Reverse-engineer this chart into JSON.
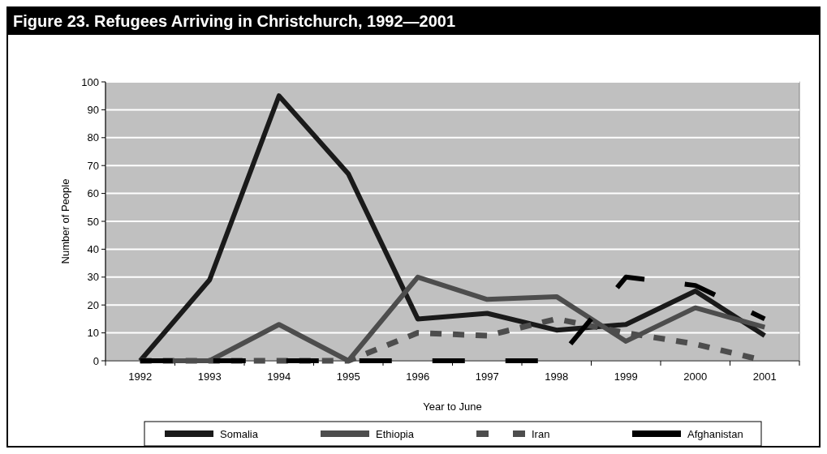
{
  "chart_data": {
    "type": "line",
    "title": "Figure 23. Refugees Arriving in Christchurch, 1992—2001",
    "xlabel": "Year to June",
    "ylabel": "Number of People",
    "categories": [
      "1992",
      "1993",
      "1994",
      "1995",
      "1996",
      "1997",
      "1998",
      "1999",
      "2000",
      "2001"
    ],
    "series": [
      {
        "name": "Somalia",
        "color": "#1a1a1a",
        "line_style": "solid",
        "values": [
          0,
          29,
          95,
          67,
          15,
          17,
          11,
          13,
          25,
          9
        ]
      },
      {
        "name": "Ethiopia",
        "color": "#4d4d4d",
        "line_style": "solid",
        "values": [
          0,
          0,
          13,
          0,
          30,
          22,
          23,
          7,
          19,
          12
        ]
      },
      {
        "name": "Iran",
        "color": "#4d4d4d",
        "line_style": "dashed",
        "values": [
          0,
          0,
          0,
          0,
          10,
          9,
          15,
          10,
          6,
          0
        ]
      },
      {
        "name": "Afghanistan",
        "color": "#000000",
        "line_style": "dashed",
        "values": [
          0,
          0,
          0,
          0,
          0,
          0,
          0,
          30,
          27,
          15
        ]
      }
    ],
    "ylim": [
      0,
      100
    ],
    "yticks": [
      0,
      10,
      20,
      30,
      40,
      50,
      60,
      70,
      80,
      90,
      100
    ],
    "grid": "y",
    "legend": "bottom",
    "marker": "none"
  }
}
